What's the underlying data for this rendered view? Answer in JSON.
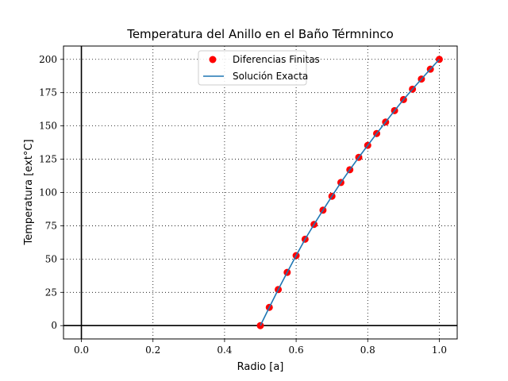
{
  "chart_data": {
    "type": "line",
    "title": "Temperatura del Anillo en el Baño Térmninco",
    "xlabel": "Radio [a]",
    "ylabel": "Temperatura [ext°C]",
    "xlim": [
      -0.05,
      1.05
    ],
    "ylim": [
      -10,
      210
    ],
    "xticks": [
      0.0,
      0.2,
      0.4,
      0.6,
      0.8,
      1.0
    ],
    "xtick_labels": [
      "0.0",
      "0.2",
      "0.4",
      "0.6",
      "0.8",
      "1.0"
    ],
    "yticks": [
      0,
      25,
      50,
      75,
      100,
      125,
      150,
      175,
      200
    ],
    "ytick_labels": [
      "0",
      "25",
      "50",
      "75",
      "100",
      "125",
      "150",
      "175",
      "200"
    ],
    "grid": true,
    "grid_style": "dotted",
    "legend_position": "top-center",
    "series": [
      {
        "name": "Diferencias Finitas",
        "kind": "scatter",
        "color": "#ff0000",
        "x": [
          0.5,
          0.525,
          0.55,
          0.575,
          0.6,
          0.625,
          0.65,
          0.675,
          0.7,
          0.725,
          0.75,
          0.775,
          0.8,
          0.825,
          0.85,
          0.875,
          0.9,
          0.925,
          0.95,
          0.975,
          1.0
        ],
        "y": [
          0.0,
          13.7,
          27.1,
          40.0,
          52.6,
          64.9,
          76.0,
          86.7,
          97.2,
          107.5,
          117.1,
          126.4,
          135.4,
          144.3,
          152.9,
          161.5,
          169.8,
          177.6,
          185.2,
          192.6,
          200.0
        ]
      },
      {
        "name": "Solución Exacta",
        "kind": "line",
        "color": "#1f77b4",
        "x": [
          0.5,
          0.525,
          0.55,
          0.575,
          0.6,
          0.625,
          0.65,
          0.675,
          0.7,
          0.725,
          0.75,
          0.775,
          0.8,
          0.825,
          0.85,
          0.875,
          0.9,
          0.925,
          0.95,
          0.975,
          1.0
        ],
        "y": [
          0.0,
          13.7,
          27.1,
          40.0,
          52.6,
          64.9,
          76.0,
          86.7,
          97.2,
          107.5,
          117.1,
          126.4,
          135.4,
          144.3,
          152.9,
          161.5,
          169.8,
          177.6,
          185.2,
          192.6,
          200.0
        ]
      }
    ]
  }
}
